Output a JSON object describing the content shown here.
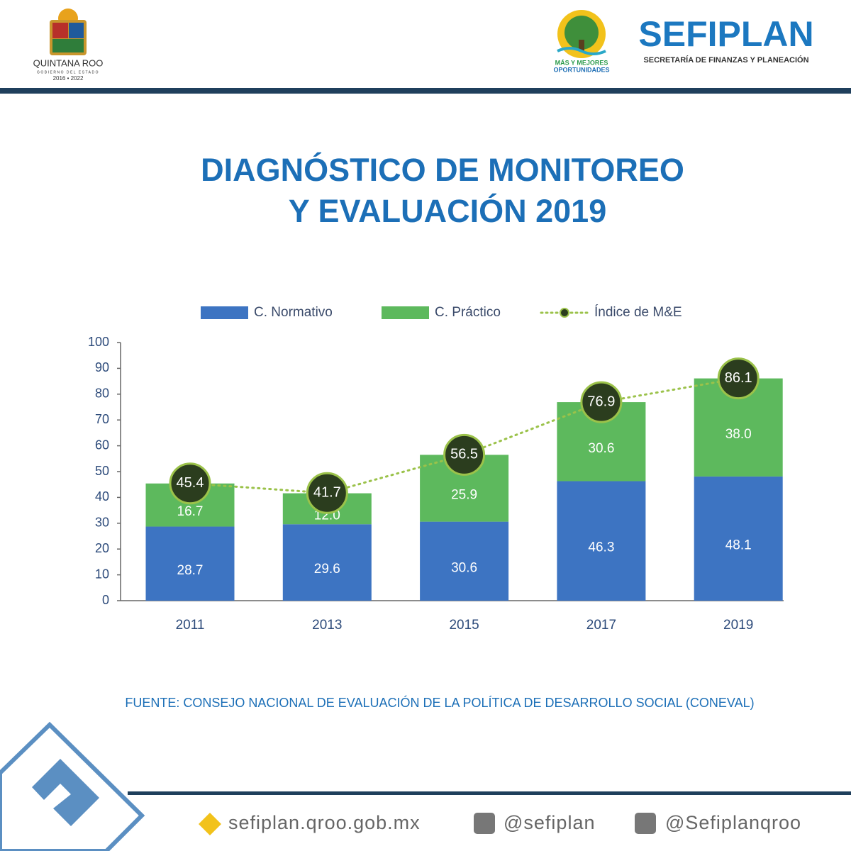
{
  "header": {
    "state": "QUINTANA ROO",
    "state_subtitle": "GOBIERNO DEL ESTADO",
    "years": "2016 • 2022",
    "slogan_1": "MÁS Y MEJORES",
    "slogan_2": "OPORTUNIDADES",
    "brand": "SEFIPLAN",
    "brand_subtitle": "SECRETARÍA DE FINANZAS Y PLANEACIÓN"
  },
  "title": [
    "DIAGNÓSTICO DE MONITOREO",
    "Y EVALUACIÓN 2019"
  ],
  "chart_data": {
    "type": "bar",
    "stacked": true,
    "categories": [
      "2011",
      "2013",
      "2015",
      "2017",
      "2019"
    ],
    "series": [
      {
        "name": "C. Normativo",
        "color": "#3d74c2",
        "values": [
          28.7,
          29.6,
          30.6,
          46.3,
          48.1
        ]
      },
      {
        "name": "C. Práctico",
        "color": "#5db95d",
        "values": [
          16.7,
          12.0,
          25.9,
          30.6,
          38.0
        ],
        "value_labels": [
          "16.7",
          "12.0",
          "25.9",
          "30.6",
          "38.0"
        ]
      },
      {
        "name": "Índice de M&E",
        "type": "line",
        "color": "#9bc24a",
        "marker_color": "#2b3d1e",
        "values": [
          45.4,
          41.7,
          56.5,
          76.9,
          86.1
        ]
      }
    ],
    "ylim": [
      0,
      100
    ],
    "yticks": [
      0,
      10,
      20,
      30,
      40,
      50,
      60,
      70,
      80,
      90,
      100
    ],
    "grid": false,
    "legend": "top"
  },
  "source": "FUENTE: CONSEJO NACIONAL DE EVALUACIÓN DE LA POLÍTICA DE DESARROLLO SOCIAL (CONEVAL)",
  "footer": {
    "website": "sefiplan.qroo.gob.mx",
    "facebook": "@sefiplan",
    "twitter": "@Sefiplanqroo"
  }
}
